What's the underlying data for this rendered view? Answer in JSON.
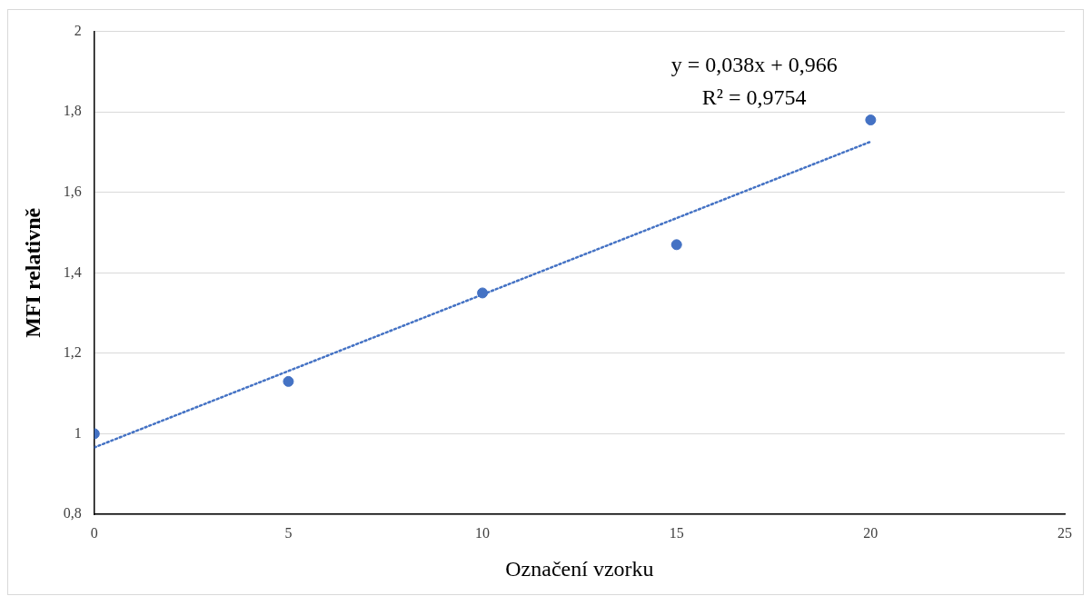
{
  "chart_data": {
    "type": "scatter",
    "xlabel": "Označení vzorku",
    "ylabel": "MFI relativně",
    "x": [
      0,
      5,
      10,
      15,
      20
    ],
    "series": [
      {
        "type": "scatter",
        "color": "#4472c4",
        "marker": "circle",
        "values": [
          1.0,
          1.13,
          1.35,
          1.47,
          1.78
        ]
      },
      {
        "type": "line",
        "color": "#4472c4",
        "line_style": "dotted",
        "marker": "none",
        "x": [
          0,
          20
        ],
        "values": [
          0.966,
          1.726
        ]
      }
    ],
    "xlim": [
      0,
      25
    ],
    "xticks": [
      0,
      5,
      10,
      15,
      20,
      25
    ],
    "ylim": [
      0.8,
      2
    ],
    "yticks": [
      {
        "value": 0.8,
        "label": "0,8"
      },
      1,
      {
        "value": 1.2,
        "label": "1,2"
      },
      {
        "value": 1.4,
        "label": "1,4"
      },
      {
        "value": 1.6,
        "label": "1,6"
      },
      {
        "value": 1.8,
        "label": "1,8"
      },
      2
    ],
    "grid": "y",
    "legend": false,
    "annotations": [
      "y = 0,038x + 0,966",
      "R² = 0,9754"
    ]
  }
}
